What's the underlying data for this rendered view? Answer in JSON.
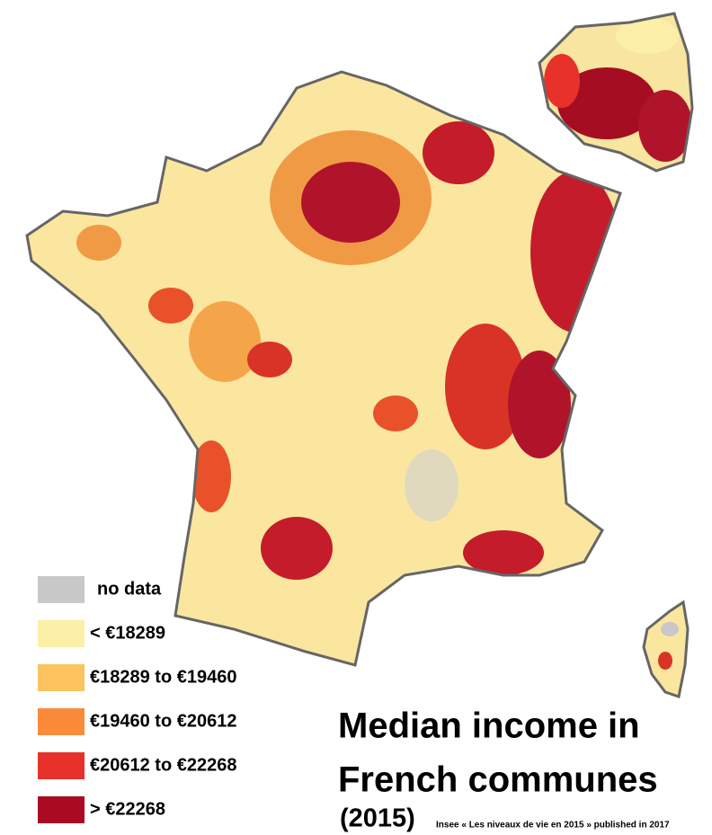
{
  "title": {
    "lines": [
      "Median income in",
      "French communes",
      "(2015)"
    ]
  },
  "source": "Insee « Les niveaux de vie en 2015 » published in 2017",
  "legend": [
    {
      "label": "no data",
      "color": "#c8c8c8"
    },
    {
      "label": "< €18289",
      "color": "#fcefa8"
    },
    {
      "label": "€18289 to €19460",
      "color": "#fdc35e"
    },
    {
      "label": "€19460 to €20612",
      "color": "#fb8a3a"
    },
    {
      "label": "€20612 to €22268",
      "color": "#e8312a"
    },
    {
      "label": "> €22268",
      "color": "#aa0a22"
    }
  ]
}
